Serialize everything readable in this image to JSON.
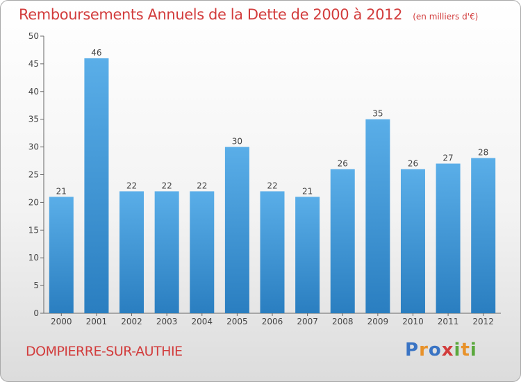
{
  "header": {
    "title": "Remboursements Annuels de la Dette de 2000 à 2012",
    "unit": "(en milliers d'€)"
  },
  "footer": {
    "commune": "DOMPIERRE-SUR-AUTHIE",
    "logo": "Proxiti"
  },
  "colors": {
    "accent": "#d23c3c",
    "bar_top": "#5aaee8",
    "bar_bottom": "#2a7ec0"
  },
  "chart_data": {
    "type": "bar",
    "categories": [
      "2000",
      "2001",
      "2002",
      "2003",
      "2004",
      "2005",
      "2006",
      "2007",
      "2008",
      "2009",
      "2010",
      "2011",
      "2012"
    ],
    "values": [
      21,
      46,
      22,
      22,
      22,
      30,
      22,
      21,
      26,
      35,
      26,
      27,
      28
    ],
    "title": "Remboursements Annuels de la Dette de 2000 à 2012",
    "ylim": [
      0,
      50
    ],
    "yticks": [
      0,
      5,
      10,
      15,
      20,
      25,
      30,
      35,
      40,
      45,
      50
    ],
    "grid": false,
    "data_labels": true
  }
}
